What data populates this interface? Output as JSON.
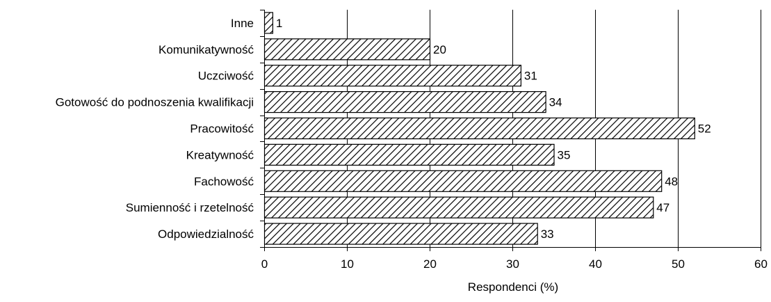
{
  "chart_data": {
    "type": "bar",
    "orientation": "horizontal",
    "title": "",
    "xlabel": "Respondenci (%)",
    "ylabel": "",
    "categories": [
      "Inne",
      "Komunikatywność",
      "Uczciwość",
      "Gotowość do podnoszenia kwalifikacji",
      "Pracowitość",
      "Kreatywność",
      "Fachowość",
      "Sumienność i rzetelność",
      "Odpowiedzialność"
    ],
    "values": [
      1,
      20,
      31,
      34,
      52,
      35,
      48,
      47,
      33
    ],
    "data_labels": [
      "1",
      "20",
      "31",
      "34",
      "52",
      "35",
      "48",
      "47",
      "33"
    ],
    "xlim": [
      0,
      60
    ],
    "x_ticks": [
      0,
      10,
      20,
      30,
      40,
      50,
      60
    ],
    "x_tick_labels": [
      "0",
      "10",
      "20",
      "30",
      "40",
      "50",
      "60"
    ],
    "grid": "vertical major gridlines",
    "legend": "none",
    "bar_fill": "diagonal hatch",
    "colors": {
      "bar_stroke": "#000000",
      "hatch": "#000000",
      "background": "#ffffff",
      "gridline": "#000000"
    }
  }
}
